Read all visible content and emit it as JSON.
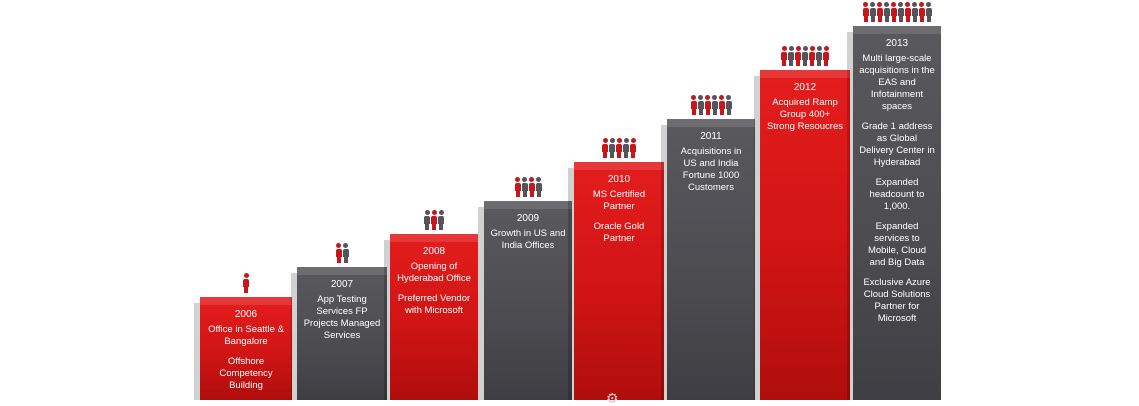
{
  "colors": {
    "red": "#d01414",
    "grey": "#4c4b50",
    "person_red": "#c8161a",
    "person_grey": "#55545a"
  },
  "milestones": [
    {
      "year": "2006",
      "style": "red",
      "people": 1,
      "people_colors": [
        "red"
      ],
      "lines": [
        "Office in Seattle & Bangalore",
        "Offshore Competency Building"
      ]
    },
    {
      "year": "2007",
      "style": "grey",
      "people": 2,
      "people_colors": [
        "red",
        "grey"
      ],
      "lines": [
        "App Testing Services FP Projects Managed Services"
      ]
    },
    {
      "year": "2008",
      "style": "red",
      "people": 3,
      "people_colors": [
        "grey",
        "red",
        "grey"
      ],
      "lines": [
        "Opening of Hyderabad Office",
        "Preferred Vendor with Microsoft"
      ]
    },
    {
      "year": "2009",
      "style": "grey",
      "people": 4,
      "people_colors": [
        "red",
        "grey",
        "red",
        "grey"
      ],
      "lines": [
        "Growth in US and India Offices"
      ]
    },
    {
      "year": "2010",
      "style": "red",
      "people": 5,
      "people_colors": [
        "red",
        "grey",
        "red",
        "grey",
        "red"
      ],
      "lines": [
        "MS Certified Partner",
        "Oracle Gold Partner"
      ]
    },
    {
      "year": "2011",
      "style": "grey",
      "people": 6,
      "people_colors": [
        "red",
        "grey",
        "red",
        "grey",
        "red",
        "grey"
      ],
      "lines": [
        "Acquisitions in US and India Fortune 1000 Customers"
      ]
    },
    {
      "year": "2012",
      "style": "red",
      "people": 7,
      "people_colors": [
        "red",
        "grey",
        "red",
        "grey",
        "red",
        "grey",
        "red"
      ],
      "lines": [
        "Acquired Ramp Group 400+ Strong Resoucres"
      ]
    },
    {
      "year": "2013",
      "style": "grey",
      "people": 10,
      "people_colors": [
        "red",
        "grey",
        "red",
        "grey",
        "red",
        "grey",
        "red",
        "grey",
        "red",
        "grey"
      ],
      "lines": [
        "Multi large-scale acquisitions in the EAS and Infotainment spaces",
        "Grade 1 address as Global Delivery Center in Hyderabad",
        "Expanded headcount to 1,000.",
        "Expanded services to Mobile, Cloud and Big Data",
        "Exclusive Azure Cloud Solutions Partner for Microsoft"
      ]
    }
  ],
  "icons": {
    "bottom_emblem": "gear-icon"
  }
}
